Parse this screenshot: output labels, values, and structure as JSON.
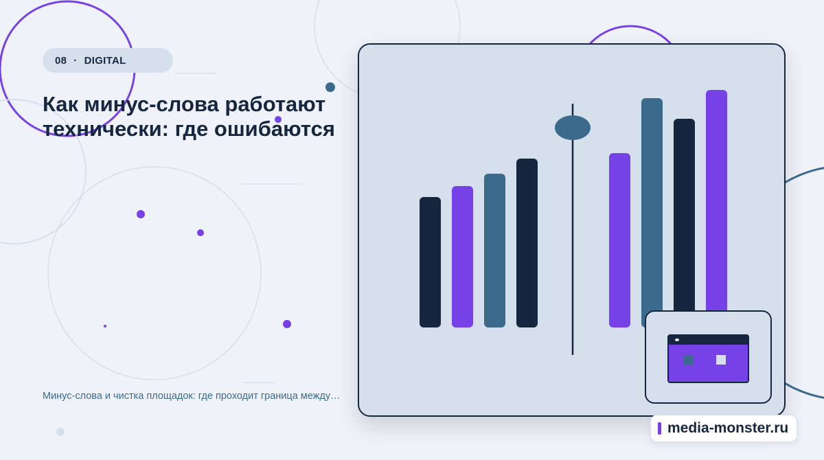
{
  "tag": {
    "number": "08",
    "separator": "·",
    "category": "DIGITAL"
  },
  "headline": "Как минус-слова работают технически: где ошибаются",
  "subline": "Минус-слова и чистка площадок: где проходит граница между…",
  "brand": {
    "text": "media-monster.ru"
  },
  "illustration": {
    "bar_heights_left": [
      190,
      206,
      224,
      246
    ],
    "bar_heights_right": [
      254,
      334,
      304,
      346
    ],
    "bar_colors_left": [
      "#16263f",
      "#7641e7",
      "#3c6a8c",
      "#16263f"
    ],
    "bar_colors_right": [
      "#7641e7",
      "#3c6a8c",
      "#16263f",
      "#7641e7"
    ]
  },
  "colors": {
    "background": "#eff2f8",
    "navy": "#16263f",
    "violet": "#7641e7",
    "steel": "#3c6a8c",
    "panel": "#d6e0ec"
  }
}
